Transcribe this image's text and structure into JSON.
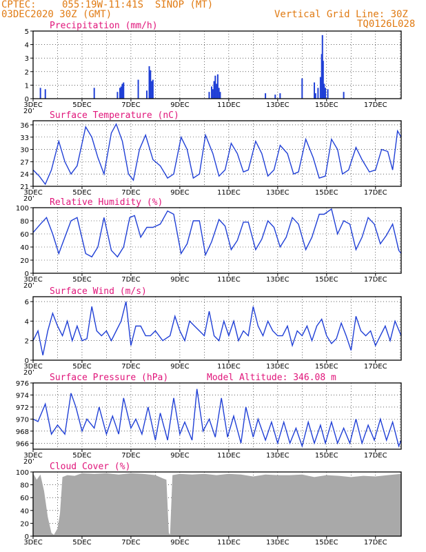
{
  "header": {
    "source": "CPTEC:",
    "location": "055:19W-11:41S  SINOP (MT)",
    "run": "03DEC2020 30Z (GMT)",
    "grid_note": "Vertical Grid Line: 30Z",
    "code": "TQ0126L028"
  },
  "x_labels": [
    "3DEC",
    "5DEC",
    "7DEC",
    "9DEC",
    "11DEC",
    "13DEC",
    "15DEC",
    "17DEC"
  ],
  "x_stub": "20’",
  "colors": {
    "series": "#1f3fd6",
    "cloud": "#a9a9a9",
    "title": "#e0157a",
    "header": "#e07a12"
  },
  "chart_data": [
    {
      "type": "bar",
      "title": "Precipitation (mm/h)",
      "ylim": [
        0,
        5
      ],
      "yticks": [
        "0",
        "1",
        "2",
        "3",
        "4",
        "5"
      ],
      "x_range_days": [
        3.0,
        18.05
      ],
      "bars": [
        [
          3.3,
          0.8
        ],
        [
          3.5,
          0.7
        ],
        [
          5.5,
          0.8
        ],
        [
          6.45,
          0.5
        ],
        [
          6.55,
          0.8
        ],
        [
          6.6,
          0.9
        ],
        [
          6.65,
          1.1
        ],
        [
          6.7,
          1.2
        ],
        [
          7.3,
          1.4
        ],
        [
          7.65,
          0.6
        ],
        [
          7.75,
          2.4
        ],
        [
          7.8,
          2.1
        ],
        [
          7.85,
          1.3
        ],
        [
          7.9,
          1.4
        ],
        [
          10.2,
          0.5
        ],
        [
          10.3,
          0.9
        ],
        [
          10.35,
          0.7
        ],
        [
          10.4,
          1.3
        ],
        [
          10.45,
          1.7
        ],
        [
          10.5,
          1.1
        ],
        [
          10.55,
          1.8
        ],
        [
          10.6,
          0.8
        ],
        [
          10.65,
          0.5
        ],
        [
          12.5,
          0.4
        ],
        [
          12.9,
          0.3
        ],
        [
          13.1,
          0.4
        ],
        [
          14.0,
          1.5
        ],
        [
          14.5,
          1.2
        ],
        [
          14.55,
          0.4
        ],
        [
          14.65,
          0.8
        ],
        [
          14.75,
          1.6
        ],
        [
          14.8,
          3.3
        ],
        [
          14.83,
          4.7
        ],
        [
          14.86,
          2.8
        ],
        [
          14.9,
          1.1
        ],
        [
          14.95,
          0.8
        ],
        [
          15.05,
          0.7
        ],
        [
          15.7,
          0.5
        ]
      ]
    },
    {
      "type": "line",
      "title": "Surface Temperature (nC)",
      "ylim": [
        21,
        37
      ],
      "yticks": [
        "21",
        "24",
        "27",
        "30",
        "33",
        "36"
      ],
      "x_range_days": [
        3.0,
        18.05
      ],
      "points": [
        [
          3.0,
          25
        ],
        [
          3.25,
          23.5
        ],
        [
          3.5,
          21.5
        ],
        [
          3.75,
          25
        ],
        [
          4.05,
          32
        ],
        [
          4.3,
          27
        ],
        [
          4.55,
          24
        ],
        [
          4.8,
          26
        ],
        [
          5.15,
          35.5
        ],
        [
          5.4,
          33
        ],
        [
          5.65,
          28
        ],
        [
          5.9,
          24
        ],
        [
          6.2,
          34
        ],
        [
          6.4,
          36.2
        ],
        [
          6.65,
          32
        ],
        [
          6.9,
          24
        ],
        [
          7.1,
          22.5
        ],
        [
          7.35,
          30
        ],
        [
          7.6,
          33.5
        ],
        [
          7.9,
          27.5
        ],
        [
          8.2,
          26
        ],
        [
          8.5,
          23
        ],
        [
          8.75,
          24
        ],
        [
          9.05,
          33
        ],
        [
          9.3,
          30
        ],
        [
          9.55,
          23
        ],
        [
          9.8,
          24
        ],
        [
          10.05,
          33.5
        ],
        [
          10.35,
          29
        ],
        [
          10.6,
          23.5
        ],
        [
          10.85,
          25
        ],
        [
          11.1,
          31.5
        ],
        [
          11.35,
          29
        ],
        [
          11.6,
          24.5
        ],
        [
          11.8,
          25
        ],
        [
          12.1,
          32
        ],
        [
          12.35,
          29
        ],
        [
          12.6,
          23.5
        ],
        [
          12.85,
          25
        ],
        [
          13.1,
          31
        ],
        [
          13.4,
          29
        ],
        [
          13.65,
          24
        ],
        [
          13.85,
          24.5
        ],
        [
          14.15,
          32.5
        ],
        [
          14.45,
          28
        ],
        [
          14.7,
          23
        ],
        [
          14.95,
          23.5
        ],
        [
          15.2,
          32.5
        ],
        [
          15.45,
          30
        ],
        [
          15.65,
          24
        ],
        [
          15.9,
          25
        ],
        [
          16.2,
          30.5
        ],
        [
          16.45,
          27.5
        ],
        [
          16.75,
          24.5
        ],
        [
          17.0,
          25
        ],
        [
          17.25,
          30
        ],
        [
          17.5,
          29.5
        ],
        [
          17.7,
          25
        ],
        [
          17.9,
          34.5
        ],
        [
          18.05,
          33
        ]
      ]
    },
    {
      "type": "line",
      "title": "Relative Humidity (%)",
      "ylim": [
        0,
        100
      ],
      "yticks": [
        "0",
        "20",
        "40",
        "60",
        "80",
        "100"
      ],
      "x_range_days": [
        3.0,
        18.05
      ],
      "points": [
        [
          3.0,
          62
        ],
        [
          3.3,
          75
        ],
        [
          3.55,
          85
        ],
        [
          3.8,
          60
        ],
        [
          4.05,
          30
        ],
        [
          4.3,
          55
        ],
        [
          4.55,
          80
        ],
        [
          4.8,
          85
        ],
        [
          5.15,
          30
        ],
        [
          5.4,
          25
        ],
        [
          5.65,
          40
        ],
        [
          5.9,
          85
        ],
        [
          6.2,
          35
        ],
        [
          6.45,
          25
        ],
        [
          6.7,
          40
        ],
        [
          6.95,
          85
        ],
        [
          7.15,
          88
        ],
        [
          7.4,
          55
        ],
        [
          7.65,
          70
        ],
        [
          7.9,
          70
        ],
        [
          8.2,
          75
        ],
        [
          8.5,
          95
        ],
        [
          8.75,
          90
        ],
        [
          9.05,
          30
        ],
        [
          9.3,
          45
        ],
        [
          9.55,
          80
        ],
        [
          9.8,
          80
        ],
        [
          10.05,
          28
        ],
        [
          10.3,
          48
        ],
        [
          10.6,
          82
        ],
        [
          10.85,
          72
        ],
        [
          11.1,
          36
        ],
        [
          11.35,
          50
        ],
        [
          11.6,
          78
        ],
        [
          11.8,
          78
        ],
        [
          12.1,
          36
        ],
        [
          12.35,
          52
        ],
        [
          12.6,
          80
        ],
        [
          12.85,
          70
        ],
        [
          13.1,
          40
        ],
        [
          13.35,
          55
        ],
        [
          13.6,
          85
        ],
        [
          13.85,
          75
        ],
        [
          14.15,
          36
        ],
        [
          14.4,
          55
        ],
        [
          14.7,
          90
        ],
        [
          14.9,
          90
        ],
        [
          15.2,
          98
        ],
        [
          15.45,
          60
        ],
        [
          15.7,
          80
        ],
        [
          15.95,
          75
        ],
        [
          16.2,
          36
        ],
        [
          16.45,
          55
        ],
        [
          16.7,
          85
        ],
        [
          16.95,
          75
        ],
        [
          17.2,
          45
        ],
        [
          17.45,
          58
        ],
        [
          17.7,
          75
        ],
        [
          17.95,
          35
        ],
        [
          18.05,
          30
        ]
      ]
    },
    {
      "type": "line",
      "title": "Surface Wind (m/s)",
      "ylim": [
        0,
        6.5
      ],
      "yticks": [
        "0",
        "2",
        "4",
        "6"
      ],
      "x_range_days": [
        3.0,
        18.05
      ],
      "points": [
        [
          3.0,
          2.0
        ],
        [
          3.2,
          3.0
        ],
        [
          3.4,
          0.5
        ],
        [
          3.6,
          3.0
        ],
        [
          3.8,
          4.8
        ],
        [
          4.0,
          3.5
        ],
        [
          4.2,
          2.5
        ],
        [
          4.4,
          4.0
        ],
        [
          4.6,
          2.0
        ],
        [
          4.8,
          3.5
        ],
        [
          5.0,
          2.0
        ],
        [
          5.2,
          2.2
        ],
        [
          5.4,
          5.5
        ],
        [
          5.6,
          3.0
        ],
        [
          5.8,
          2.5
        ],
        [
          6.0,
          3.0
        ],
        [
          6.2,
          2.0
        ],
        [
          6.4,
          3.0
        ],
        [
          6.6,
          4.0
        ],
        [
          6.8,
          6.0
        ],
        [
          7.0,
          1.5
        ],
        [
          7.2,
          3.5
        ],
        [
          7.4,
          3.5
        ],
        [
          7.6,
          2.5
        ],
        [
          7.8,
          2.5
        ],
        [
          8.0,
          3.0
        ],
        [
          8.3,
          2.0
        ],
        [
          8.6,
          2.5
        ],
        [
          8.8,
          4.5
        ],
        [
          9.0,
          3.0
        ],
        [
          9.2,
          2.0
        ],
        [
          9.4,
          4.0
        ],
        [
          9.6,
          3.5
        ],
        [
          9.8,
          3.0
        ],
        [
          10.0,
          2.5
        ],
        [
          10.2,
          5.0
        ],
        [
          10.4,
          2.5
        ],
        [
          10.6,
          2.0
        ],
        [
          10.8,
          4.0
        ],
        [
          11.0,
          2.5
        ],
        [
          11.2,
          4.0
        ],
        [
          11.4,
          2.0
        ],
        [
          11.6,
          3.0
        ],
        [
          11.8,
          2.5
        ],
        [
          12.0,
          5.5
        ],
        [
          12.2,
          3.5
        ],
        [
          12.4,
          2.5
        ],
        [
          12.6,
          4.0
        ],
        [
          12.8,
          3.0
        ],
        [
          13.0,
          2.5
        ],
        [
          13.2,
          2.5
        ],
        [
          13.4,
          3.5
        ],
        [
          13.6,
          1.5
        ],
        [
          13.8,
          3.0
        ],
        [
          14.0,
          2.5
        ],
        [
          14.2,
          3.5
        ],
        [
          14.4,
          2.0
        ],
        [
          14.6,
          3.5
        ],
        [
          14.8,
          4.2
        ],
        [
          15.0,
          2.5
        ],
        [
          15.2,
          1.7
        ],
        [
          15.4,
          2.2
        ],
        [
          15.6,
          3.8
        ],
        [
          15.8,
          2.5
        ],
        [
          16.0,
          1.0
        ],
        [
          16.2,
          4.5
        ],
        [
          16.4,
          3.0
        ],
        [
          16.6,
          2.5
        ],
        [
          16.8,
          3.0
        ],
        [
          17.0,
          1.5
        ],
        [
          17.2,
          2.5
        ],
        [
          17.4,
          3.5
        ],
        [
          17.6,
          2.0
        ],
        [
          17.8,
          4.0
        ],
        [
          18.05,
          2.5
        ]
      ]
    },
    {
      "type": "line",
      "title": "Surface Pressure (hPa)",
      "annotation": "Model Altitude: 346.08 m",
      "ylim": [
        965,
        976
      ],
      "yticks": [
        "966",
        "968",
        "970",
        "972",
        "974",
        "976"
      ],
      "x_range_days": [
        3.0,
        18.05
      ],
      "points": [
        [
          3.0,
          970
        ],
        [
          3.2,
          969.6
        ],
        [
          3.5,
          972.5
        ],
        [
          3.75,
          967.5
        ],
        [
          4.0,
          969
        ],
        [
          4.3,
          967.5
        ],
        [
          4.55,
          974.3
        ],
        [
          4.75,
          972
        ],
        [
          5.0,
          968
        ],
        [
          5.2,
          970
        ],
        [
          5.5,
          968.5
        ],
        [
          5.7,
          972
        ],
        [
          6.0,
          967.5
        ],
        [
          6.25,
          970.5
        ],
        [
          6.5,
          967.5
        ],
        [
          6.7,
          973.5
        ],
        [
          7.0,
          968.5
        ],
        [
          7.2,
          970
        ],
        [
          7.45,
          967.5
        ],
        [
          7.7,
          972
        ],
        [
          8.0,
          966.5
        ],
        [
          8.2,
          971
        ],
        [
          8.5,
          966.5
        ],
        [
          8.75,
          973.5
        ],
        [
          9.0,
          967.5
        ],
        [
          9.2,
          969.5
        ],
        [
          9.5,
          966.5
        ],
        [
          9.7,
          975
        ],
        [
          9.95,
          968
        ],
        [
          10.2,
          970
        ],
        [
          10.45,
          967
        ],
        [
          10.7,
          973.5
        ],
        [
          10.95,
          967
        ],
        [
          11.2,
          970.5
        ],
        [
          11.5,
          966
        ],
        [
          11.7,
          972
        ],
        [
          12.0,
          967
        ],
        [
          12.2,
          970
        ],
        [
          12.5,
          966.5
        ],
        [
          12.75,
          969.5
        ],
        [
          13.0,
          966
        ],
        [
          13.25,
          969.5
        ],
        [
          13.5,
          966
        ],
        [
          13.75,
          968.5
        ],
        [
          14.0,
          965.5
        ],
        [
          14.25,
          969.5
        ],
        [
          14.5,
          966
        ],
        [
          14.75,
          969
        ],
        [
          14.95,
          966
        ],
        [
          15.2,
          969.5
        ],
        [
          15.45,
          966
        ],
        [
          15.7,
          968.5
        ],
        [
          15.95,
          966
        ],
        [
          16.2,
          970
        ],
        [
          16.45,
          966
        ],
        [
          16.7,
          969
        ],
        [
          16.95,
          966.5
        ],
        [
          17.2,
          970
        ],
        [
          17.45,
          966.5
        ],
        [
          17.7,
          969.5
        ],
        [
          17.95,
          965.5
        ],
        [
          18.05,
          966.5
        ]
      ]
    },
    {
      "type": "area",
      "title": "Cloud Cover (%)",
      "ylim": [
        0,
        100
      ],
      "yticks": [
        "0",
        "20",
        "40",
        "60",
        "80",
        "100"
      ],
      "x_range_days": [
        3.0,
        18.05
      ],
      "points": [
        [
          3.0,
          98
        ],
        [
          3.15,
          88
        ],
        [
          3.3,
          96
        ],
        [
          3.45,
          70
        ],
        [
          3.6,
          30
        ],
        [
          3.75,
          5
        ],
        [
          3.85,
          2
        ],
        [
          4.0,
          12
        ],
        [
          4.1,
          35
        ],
        [
          4.2,
          92
        ],
        [
          4.4,
          95
        ],
        [
          4.7,
          94
        ],
        [
          5.0,
          98
        ],
        [
          5.5,
          97
        ],
        [
          6.0,
          98
        ],
        [
          6.5,
          96
        ],
        [
          7.0,
          98
        ],
        [
          7.5,
          97
        ],
        [
          8.0,
          95
        ],
        [
          8.3,
          90
        ],
        [
          8.45,
          88
        ],
        [
          8.55,
          5
        ],
        [
          8.6,
          2
        ],
        [
          8.7,
          95
        ],
        [
          9.0,
          97
        ],
        [
          9.5,
          96
        ],
        [
          10.0,
          97
        ],
        [
          10.5,
          95
        ],
        [
          11.0,
          97
        ],
        [
          11.5,
          96
        ],
        [
          12.0,
          93
        ],
        [
          12.5,
          96
        ],
        [
          13.0,
          95
        ],
        [
          13.5,
          95
        ],
        [
          14.0,
          96
        ],
        [
          14.5,
          92
        ],
        [
          15.0,
          95
        ],
        [
          15.5,
          94
        ],
        [
          16.0,
          92
        ],
        [
          16.5,
          94
        ],
        [
          17.0,
          93
        ],
        [
          17.5,
          95
        ],
        [
          18.05,
          97
        ]
      ]
    }
  ]
}
